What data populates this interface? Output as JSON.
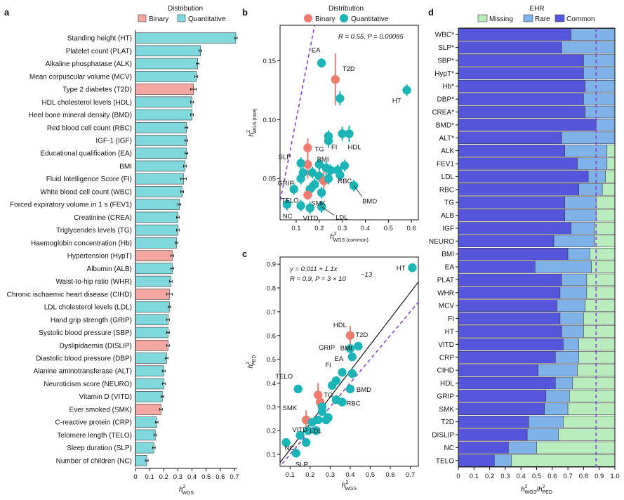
{
  "panels": {
    "a": {
      "letter": "a"
    },
    "b": {
      "letter": "b"
    },
    "c": {
      "letter": "c"
    },
    "d": {
      "letter": "d"
    }
  },
  "legend_distribution": {
    "title": "Distribution",
    "items": [
      {
        "label": "Binary",
        "color": "#f4a6a0"
      },
      {
        "label": "Quantitative",
        "color": "#7fd8dc"
      }
    ]
  },
  "legend_distribution_b": {
    "title": "Distribution",
    "items": [
      {
        "label": "Binary",
        "color": "#ef7b6f"
      },
      {
        "label": "Quantitative",
        "color": "#1bb5b8"
      }
    ]
  },
  "legend_ehr": {
    "title": "EHR",
    "items": [
      {
        "label": "Missing",
        "color": "#b9ecbc"
      },
      {
        "label": "Rare",
        "color": "#7eb2e8"
      },
      {
        "label": "Common",
        "color": "#5656dc"
      }
    ]
  },
  "chart_data": [
    {
      "panel": "a",
      "type": "bar",
      "orientation": "horizontal",
      "xlabel": "h2WGS",
      "xlim": [
        0,
        0.72
      ],
      "xticks": [
        "0",
        "0.1",
        "0.2",
        "0.3",
        "0.4",
        "0.5",
        "0.6",
        "0.7"
      ],
      "categories": [
        "Standing height (HT)",
        "Platelet count (PLAT)",
        "Alkaline phosphatase (ALK)",
        "Mean corpuscular volume (MCV)",
        "Type 2 diabetes (T2D)",
        "HDL cholesterol levels (HDL)",
        "Heel bone mineral density (BMD)",
        "Red blood cell count (RBC)",
        "IGF-1 (IGF)",
        "Educational qualification (EA)",
        "BMI",
        "Fluid Intelligence Score (FI)",
        "White blood cell count (WBC)",
        "Forced expiratory volume in 1 s (FEV1)",
        "Creatinine (CREA)",
        "Triglycerides levels (TG)",
        "Haemoglobin concentration (Hb)",
        "Hypertension (HypT)",
        "Albumin (ALB)",
        "Waist-to-hip ratio (WHR)",
        "Chronic ischaemic heart disease (CIHD)",
        "LDL cholesterol levels (LDL)",
        "Hand grip strength (GRIP)",
        "Systolic blood pressure (SBP)",
        "Dyslipidaemia (DISLIP)",
        "Diastolic blood pressure (DBP)",
        "Alanine aminotransferase (ALT)",
        "Neuroticism score (NEURO)",
        "Vitamin D (VITD)",
        "Ever smoked (SMK)",
        "C-reactive protein (CRP)",
        "Telomere length (TELO)",
        "Sleep duration (SLP)",
        "Number of children (NC)"
      ],
      "values": [
        0.71,
        0.46,
        0.44,
        0.43,
        0.41,
        0.4,
        0.4,
        0.36,
        0.36,
        0.36,
        0.35,
        0.34,
        0.33,
        0.31,
        0.3,
        0.3,
        0.29,
        0.26,
        0.26,
        0.25,
        0.24,
        0.24,
        0.23,
        0.23,
        0.23,
        0.22,
        0.2,
        0.2,
        0.19,
        0.18,
        0.15,
        0.14,
        0.13,
        0.08
      ],
      "errors": [
        0.01,
        0.01,
        0.01,
        0.01,
        0.02,
        0.01,
        0.01,
        0.01,
        0.01,
        0.01,
        0.01,
        0.02,
        0.01,
        0.01,
        0.01,
        0.01,
        0.01,
        0.01,
        0.01,
        0.01,
        0.02,
        0.01,
        0.01,
        0.01,
        0.01,
        0.01,
        0.01,
        0.01,
        0.01,
        0.01,
        0.01,
        0.01,
        0.01,
        0.01
      ],
      "binary": [
        false,
        false,
        false,
        false,
        true,
        false,
        false,
        false,
        false,
        false,
        false,
        false,
        false,
        false,
        false,
        false,
        false,
        true,
        false,
        false,
        true,
        false,
        false,
        false,
        true,
        false,
        false,
        false,
        false,
        true,
        false,
        false,
        false,
        false
      ]
    },
    {
      "panel": "b",
      "type": "scatter",
      "xlabel": "h2WGS (common)",
      "ylabel": "h2WGS (rare)",
      "xlim": [
        0.03,
        0.63
      ],
      "ylim": [
        0.015,
        0.18
      ],
      "xticks": [
        "0.1",
        "0.2",
        "0.3",
        "0.4",
        "0.5",
        "0.6"
      ],
      "yticks": [
        "0.05",
        "0.10",
        "0.15"
      ],
      "annotation": "R = 0.55, P = 0.00085",
      "points": [
        {
          "label": "EA",
          "x": 0.21,
          "y": 0.148,
          "err": 0.004,
          "binary": false
        },
        {
          "label": "T2D",
          "x": 0.27,
          "y": 0.134,
          "err": 0.022,
          "binary": true
        },
        {
          "label": "",
          "x": 0.29,
          "y": 0.118,
          "err": 0.006,
          "binary": false
        },
        {
          "label": "HT",
          "x": 0.58,
          "y": 0.125,
          "err": 0.005,
          "binary": false
        },
        {
          "label": "HDL",
          "x": 0.33,
          "y": 0.088,
          "err": 0.007,
          "binary": false
        },
        {
          "label": "",
          "x": 0.3,
          "y": 0.088,
          "err": 0.006,
          "binary": false
        },
        {
          "label": "FI",
          "x": 0.24,
          "y": 0.082,
          "err": 0.006,
          "binary": false
        },
        {
          "label": "",
          "x": 0.24,
          "y": 0.086,
          "err": 0.005,
          "binary": false
        },
        {
          "label": "TG",
          "x": 0.15,
          "y": 0.076,
          "err": 0.008,
          "binary": true
        },
        {
          "label": "",
          "x": 0.15,
          "y": 0.062,
          "err": 0.012,
          "binary": true
        },
        {
          "label": "SLP",
          "x": 0.12,
          "y": 0.063,
          "err": 0.005,
          "binary": false
        },
        {
          "label": "BMI",
          "x": 0.23,
          "y": 0.059,
          "err": 0.006,
          "binary": false
        },
        {
          "label": "",
          "x": 0.2,
          "y": 0.062,
          "err": 0.005,
          "binary": false
        },
        {
          "label": "",
          "x": 0.25,
          "y": 0.057,
          "err": 0.005,
          "binary": false
        },
        {
          "label": "",
          "x": 0.28,
          "y": 0.057,
          "err": 0.005,
          "binary": false
        },
        {
          "label": "",
          "x": 0.31,
          "y": 0.061,
          "err": 0.005,
          "binary": false
        },
        {
          "label": "RBC",
          "x": 0.29,
          "y": 0.053,
          "err": 0.005,
          "binary": false
        },
        {
          "label": "",
          "x": 0.17,
          "y": 0.055,
          "err": 0.005,
          "binary": false
        },
        {
          "label": "",
          "x": 0.13,
          "y": 0.055,
          "err": 0.005,
          "binary": false
        },
        {
          "label": "",
          "x": 0.2,
          "y": 0.052,
          "err": 0.005,
          "binary": false
        },
        {
          "label": "",
          "x": 0.22,
          "y": 0.048,
          "err": 0.008,
          "binary": true
        },
        {
          "label": "",
          "x": 0.24,
          "y": 0.05,
          "err": 0.005,
          "binary": false
        },
        {
          "label": "GRIP",
          "x": 0.12,
          "y": 0.05,
          "err": 0.005,
          "binary": false
        },
        {
          "label": "BMD",
          "x": 0.35,
          "y": 0.044,
          "err": 0.005,
          "binary": false
        },
        {
          "label": "",
          "x": 0.18,
          "y": 0.045,
          "err": 0.005,
          "binary": false
        },
        {
          "label": "TELO",
          "x": 0.09,
          "y": 0.041,
          "err": 0.005,
          "binary": false
        },
        {
          "label": "",
          "x": 0.16,
          "y": 0.041,
          "err": 0.005,
          "binary": false
        },
        {
          "label": "SMK",
          "x": 0.15,
          "y": 0.036,
          "err": 0.004,
          "binary": true
        },
        {
          "label": "",
          "x": 0.21,
          "y": 0.038,
          "err": 0.005,
          "binary": false
        },
        {
          "label": "NC",
          "x": 0.06,
          "y": 0.028,
          "err": 0.005,
          "binary": false
        },
        {
          "label": "",
          "x": 0.12,
          "y": 0.027,
          "err": 0.005,
          "binary": false
        },
        {
          "label": "VITD",
          "x": 0.16,
          "y": 0.025,
          "err": 0.005,
          "binary": false
        },
        {
          "label": "LDL",
          "x": 0.21,
          "y": 0.026,
          "err": 0.005,
          "binary": false
        }
      ]
    },
    {
      "panel": "c",
      "type": "scatter",
      "xlabel": "h2WGS",
      "ylabel": "h2PED",
      "xlim": [
        0.05,
        0.74
      ],
      "ylim": [
        0.05,
        0.93
      ],
      "xticks": [
        "0.1",
        "0.2",
        "0.3",
        "0.4",
        "0.5",
        "0.6",
        "0.7"
      ],
      "yticks": [
        "0.1",
        "0.2",
        "0.3",
        "0.4",
        "0.5",
        "0.6",
        "0.7",
        "0.8",
        "0.9"
      ],
      "annotation_lines": [
        "y = 0.011 + 1.1x",
        "R = 0.9, P = 3 × 10",
        "−13"
      ],
      "fit": {
        "intercept": 0.011,
        "slope": 1.1
      },
      "points": [
        {
          "label": "HT",
          "x": 0.71,
          "y": 0.885,
          "err": 0.006,
          "binary": false
        },
        {
          "label": "HDL",
          "x": 0.4,
          "y": 0.6,
          "err": 0.04,
          "binary": true
        },
        {
          "label": "T2D",
          "x": 0.44,
          "y": 0.555,
          "err": 0.01,
          "binary": false
        },
        {
          "label": "",
          "x": 0.4,
          "y": 0.545,
          "err": 0.01,
          "binary": false
        },
        {
          "label": "BMI",
          "x": 0.41,
          "y": 0.51,
          "err": 0.01,
          "binary": false
        },
        {
          "label": "EA",
          "x": 0.36,
          "y": 0.445,
          "err": 0.01,
          "binary": false
        },
        {
          "label": "",
          "x": 0.41,
          "y": 0.44,
          "err": 0.01,
          "binary": false
        },
        {
          "label": "GRIP",
          "x": 0.33,
          "y": 0.41,
          "err": 0.01,
          "binary": false
        },
        {
          "label": "BMD",
          "x": 0.4,
          "y": 0.375,
          "err": 0.01,
          "binary": false
        },
        {
          "label": "FI",
          "x": 0.31,
          "y": 0.39,
          "err": 0.01,
          "binary": false
        },
        {
          "label": "TELO",
          "x": 0.14,
          "y": 0.375,
          "err": 0.015,
          "binary": false
        },
        {
          "label": "TG",
          "x": 0.24,
          "y": 0.35,
          "err": 0.05,
          "binary": true
        },
        {
          "label": "RBC",
          "x": 0.36,
          "y": 0.32,
          "err": 0.01,
          "binary": false
        },
        {
          "label": "",
          "x": 0.33,
          "y": 0.33,
          "err": 0.01,
          "binary": false
        },
        {
          "label": "",
          "x": 0.25,
          "y": 0.32,
          "err": 0.03,
          "binary": true
        },
        {
          "label": "",
          "x": 0.26,
          "y": 0.3,
          "err": 0.01,
          "binary": false
        },
        {
          "label": "",
          "x": 0.26,
          "y": 0.28,
          "err": 0.01,
          "binary": false
        },
        {
          "label": "SMK",
          "x": 0.18,
          "y": 0.245,
          "err": 0.04,
          "binary": true
        },
        {
          "label": "",
          "x": 0.29,
          "y": 0.255,
          "err": 0.01,
          "binary": false
        },
        {
          "label": "",
          "x": 0.28,
          "y": 0.245,
          "err": 0.01,
          "binary": false
        },
        {
          "label": "LDL",
          "x": 0.24,
          "y": 0.245,
          "err": 0.01,
          "binary": false
        },
        {
          "label": "",
          "x": 0.21,
          "y": 0.235,
          "err": 0.01,
          "binary": false
        },
        {
          "label": "VITD",
          "x": 0.19,
          "y": 0.2,
          "err": 0.01,
          "binary": false
        },
        {
          "label": "",
          "x": 0.23,
          "y": 0.2,
          "err": 0.01,
          "binary": false
        },
        {
          "label": "",
          "x": 0.15,
          "y": 0.18,
          "err": 0.01,
          "binary": false
        },
        {
          "label": "NC",
          "x": 0.08,
          "y": 0.15,
          "err": 0.01,
          "binary": false
        },
        {
          "label": "",
          "x": 0.18,
          "y": 0.15,
          "err": 0.01,
          "binary": false
        },
        {
          "label": "SLP",
          "x": 0.13,
          "y": 0.105,
          "err": 0.01,
          "binary": false
        }
      ]
    },
    {
      "panel": "d",
      "type": "bar",
      "orientation": "horizontal",
      "stacked": true,
      "xlabel": "h2WGS/h2PED",
      "xlim": [
        0,
        1.0
      ],
      "xticks": [
        "0",
        "0.1",
        "0.2",
        "0.3",
        "0.4",
        "0.5",
        "0.6",
        "0.7",
        "0.8",
        "0.9",
        "1.0"
      ],
      "reference_line": 0.88,
      "categories": [
        "WBC*",
        "SLP*",
        "SBP*",
        "HypT*",
        "Hb*",
        "DBP*",
        "CREA*",
        "BMD*",
        "ALT*",
        "ALK",
        "FEV1",
        "LDL",
        "RBC",
        "TG",
        "ALB",
        "IGF",
        "NEURO",
        "BMI",
        "EA",
        "PLAT",
        "WHR",
        "MCV",
        "FI",
        "HT",
        "VITD",
        "CRP",
        "CIHD",
        "HDL",
        "GRIP",
        "SMK",
        "T2D",
        "DISLIP",
        "NC",
        "TELO"
      ],
      "series": [
        {
          "name": "Common",
          "values": [
            0.72,
            0.66,
            0.8,
            0.8,
            0.81,
            0.8,
            0.81,
            0.88,
            0.66,
            0.68,
            0.76,
            0.83,
            0.77,
            0.68,
            0.68,
            0.72,
            0.61,
            0.7,
            0.49,
            0.66,
            0.65,
            0.63,
            0.65,
            0.66,
            0.67,
            0.62,
            0.51,
            0.62,
            0.56,
            0.55,
            0.45,
            0.44,
            0.32,
            0.23
          ]
        },
        {
          "name": "Rare",
          "values": [
            0.28,
            0.34,
            0.2,
            0.2,
            0.19,
            0.2,
            0.19,
            0.12,
            0.34,
            0.27,
            0.19,
            0.11,
            0.15,
            0.2,
            0.2,
            0.15,
            0.26,
            0.14,
            0.36,
            0.16,
            0.17,
            0.18,
            0.15,
            0.14,
            0.1,
            0.15,
            0.25,
            0.11,
            0.15,
            0.15,
            0.22,
            0.2,
            0.18,
            0.11
          ]
        },
        {
          "name": "Missing",
          "values": [
            0,
            0,
            0,
            0,
            0,
            0,
            0,
            0,
            0,
            0.05,
            0.05,
            0.06,
            0.08,
            0.12,
            0.12,
            0.13,
            0.13,
            0.16,
            0.15,
            0.18,
            0.18,
            0.19,
            0.2,
            0.2,
            0.23,
            0.23,
            0.24,
            0.27,
            0.29,
            0.3,
            0.33,
            0.36,
            0.5,
            0.66
          ]
        }
      ]
    }
  ]
}
